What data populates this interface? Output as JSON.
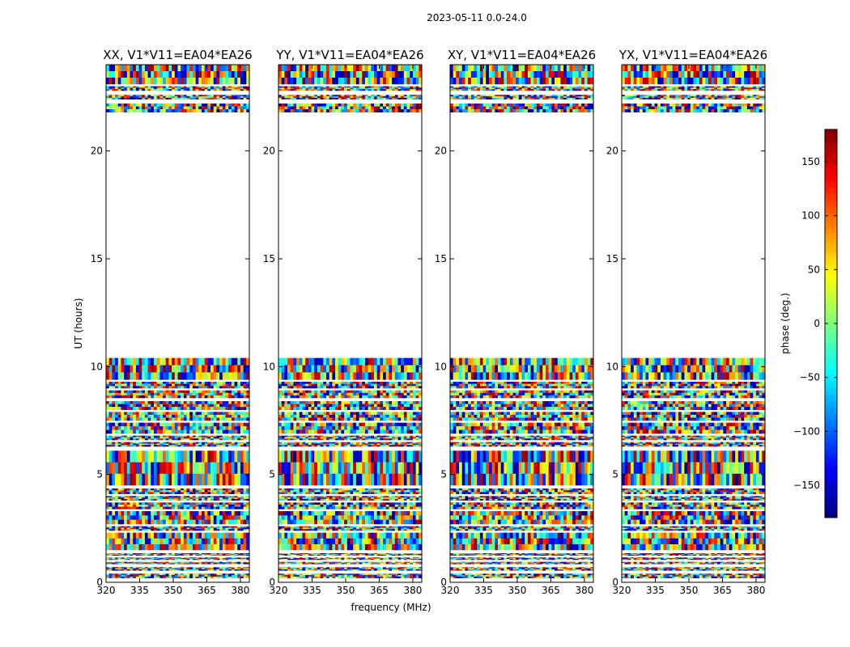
{
  "figure": {
    "suptitle": "2023-05-11 0.0-24.0"
  },
  "chart_data": {
    "type": "heatmap",
    "xlabel": "frequency (MHz)",
    "ylabel": "UT (hours)",
    "xlim": [
      320,
      384
    ],
    "ylim": [
      0,
      24
    ],
    "xticks": [
      320,
      335,
      350,
      365,
      380
    ],
    "yticks": [
      0,
      5,
      10,
      15,
      20
    ],
    "panels": [
      {
        "title": "XX, V1*V11=EA04*EA26"
      },
      {
        "title": "YY, V1*V11=EA04*EA26"
      },
      {
        "title": "XY, V1*V11=EA04*EA26"
      },
      {
        "title": "YX, V1*V11=EA04*EA26"
      }
    ],
    "observed_ut_ranges": [
      [
        0.2,
        0.4
      ],
      [
        0.55,
        0.7
      ],
      [
        0.85,
        0.95
      ],
      [
        1.05,
        1.15
      ],
      [
        1.25,
        1.35
      ],
      [
        1.5,
        2.3
      ],
      [
        2.4,
        2.6
      ],
      [
        2.7,
        3.3
      ],
      [
        3.4,
        3.7
      ],
      [
        3.8,
        4.0
      ],
      [
        4.1,
        4.35
      ],
      [
        4.5,
        6.1
      ],
      [
        6.3,
        6.5
      ],
      [
        6.6,
        6.8
      ],
      [
        6.9,
        7.4
      ],
      [
        7.5,
        7.9
      ],
      [
        8.0,
        8.4
      ],
      [
        8.55,
        8.9
      ],
      [
        9.0,
        9.3
      ],
      [
        9.4,
        10.4
      ],
      [
        21.8,
        22.2
      ],
      [
        22.4,
        22.6
      ],
      [
        22.8,
        23.0
      ],
      [
        23.1,
        24.0
      ]
    ],
    "colorbar": {
      "label": "phase (deg.)",
      "range": [
        -180,
        180
      ],
      "ticks": [
        -150,
        -100,
        -50,
        0,
        50,
        100,
        150
      ],
      "tick_labels": [
        "−150",
        "−100",
        "−50",
        "0",
        "50",
        "100",
        "150"
      ],
      "colormap": "jet",
      "colors": [
        "#00007f",
        "#0000ff",
        "#007fff",
        "#00ffff",
        "#7fff7f",
        "#ffff00",
        "#ff7f00",
        "#ff0000",
        "#7f0000"
      ]
    }
  }
}
